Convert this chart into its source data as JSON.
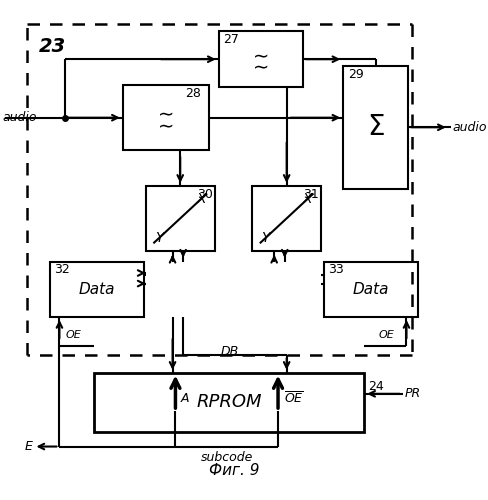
{
  "fig_width": 4.89,
  "fig_height": 5.0,
  "dpi": 100,
  "bg_color": "#ffffff",
  "title": "Фиг. 9",
  "label_23": "23",
  "label_27": "27",
  "label_28": "28",
  "label_29": "29",
  "label_30": "30",
  "label_31": "31",
  "label_32": "32",
  "label_33": "33",
  "label_24": "24",
  "sum_symbol": "Σ",
  "data_symbol": "Data",
  "rprom_symbol": "RPROM",
  "audio_in": "audio",
  "audio_out": "audio",
  "label_OE_left": "OE",
  "label_OE_right": "OE",
  "label_DB": "DB",
  "label_A": "A",
  "label_PR": "PR",
  "label_E": "E",
  "label_subcode": "subcode"
}
